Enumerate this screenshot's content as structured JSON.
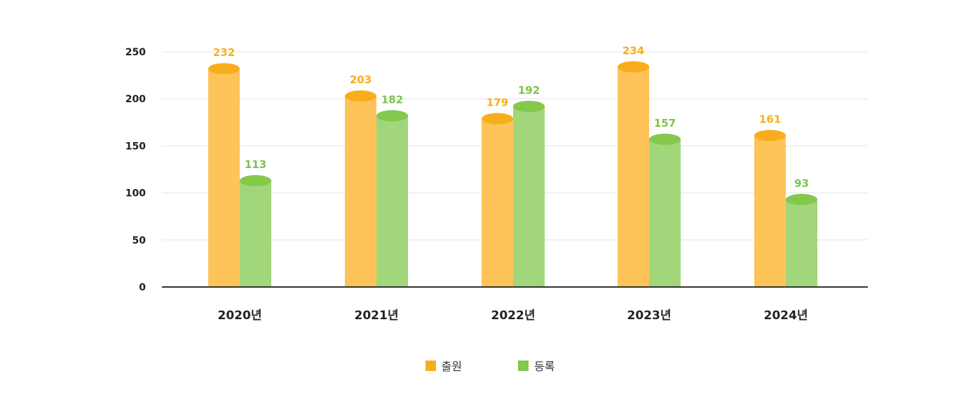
{
  "colors": {
    "series_1_top": "#F8AE1C",
    "series_1_body": "#FEC459",
    "series_2_top": "#84C84C",
    "series_2_body": "#A2D67A",
    "series_1_label": "#F8AE1C",
    "series_2_label": "#7DC447",
    "grid": "#E6E6E6",
    "axis": "#333333"
  },
  "chart_data": {
    "type": "bar",
    "style": "3d-cylinder",
    "categories": [
      "2020년",
      "2021년",
      "2022년",
      "2023년",
      "2024년"
    ],
    "series": [
      {
        "name": "출원",
        "values": [
          232,
          203,
          179,
          234,
          161
        ]
      },
      {
        "name": "등록",
        "values": [
          113,
          182,
          192,
          157,
          93
        ]
      }
    ],
    "ylim": [
      0,
      250
    ],
    "yticks": [
      0,
      50,
      100,
      150,
      200,
      250
    ],
    "grid": true,
    "legend": "bottom-center"
  }
}
